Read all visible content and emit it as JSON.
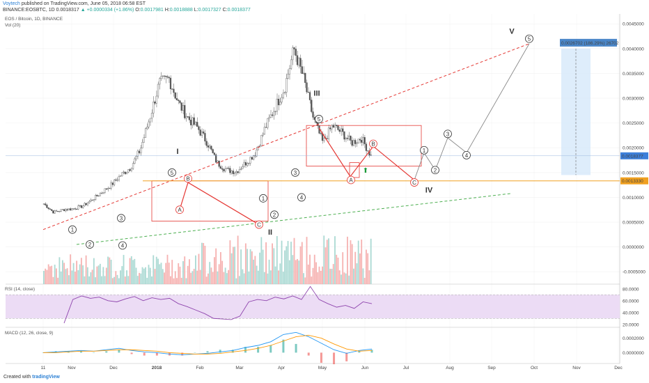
{
  "header": {
    "author": "Voytech",
    "published": "published on TradingView.com, June 05, 2018 06:58 EST",
    "symbol": "BINANCE:EOSBTC, 1D",
    "ohlc_prefix": "0.0018317",
    "change": "+0.0000334 (+1.86%)",
    "o_label": "O:",
    "o_value": "0.0017981",
    "h_label": "H:",
    "h_value": "0.0018888",
    "l_label": "L:",
    "l_value": "0.0017327",
    "c_label": "C:",
    "c_value": "0.0018377"
  },
  "legend": {
    "title": "EOS / Bitcoin, 1D, BINANCE",
    "vol": "Vol (20)",
    "rsi": "RSI (14, close)",
    "macd": "MACD (12, 26, close, 9)"
  },
  "footer": {
    "created": "Created with",
    "brand": "tradingView"
  },
  "colors": {
    "up": "#26a69a",
    "down": "#ef5350",
    "vol_up": "#9ed4cc",
    "vol_down": "#f4a6a4",
    "wave_red": "#e53935",
    "wave_grey": "#888888",
    "orange": "#f0a020",
    "green_dash": "#4caf50",
    "rsi_line": "#8e44ad",
    "rsi_band": "#ecdcf5",
    "macd_line": "#2196f3",
    "signal_line": "#ff9800",
    "projection": "#d6e8fa",
    "price_label": "#3d7fd9"
  },
  "chart_data": {
    "type": "line",
    "title": "EOS / Bitcoin, 1D, BINANCE",
    "y_ticks": [
      "0.0045000",
      "0.0040000",
      "0.0035000",
      "0.0030000",
      "0.0025000",
      "0.0020000",
      "0.0015000",
      "0.0010000",
      "0.0005000",
      "0.0000000",
      "-0.0005000"
    ],
    "ylim": [
      -0.00075,
      0.0047
    ],
    "x_ticks": [
      "11",
      "Nov",
      "Dec",
      "2018",
      "Feb",
      "Mar",
      "Apr",
      "May",
      "Jun",
      "Jul",
      "Aug",
      "Sep",
      "Oct",
      "Nov",
      "Dec"
    ],
    "current_price_label": "0.0018377",
    "support_label": "0.0013330",
    "projection_label": "0.0026702 (186.29%) 26702",
    "price_series": {
      "name": "EOSBTC",
      "points": [
        [
          0,
          0.00087
        ],
        [
          1,
          0.0007
        ],
        [
          2,
          0.00075
        ],
        [
          3,
          0.00077
        ],
        [
          4,
          0.00082
        ],
        [
          5,
          0.00095
        ],
        [
          6,
          0.0011
        ],
        [
          7,
          0.00125
        ],
        [
          8,
          0.00145
        ],
        [
          9,
          0.0016
        ],
        [
          10,
          0.00195
        ],
        [
          11,
          0.0026
        ],
        [
          12,
          0.0033
        ],
        [
          13,
          0.0034
        ],
        [
          14,
          0.0029
        ],
        [
          15,
          0.0026
        ],
        [
          16,
          0.0024
        ],
        [
          17,
          0.0021
        ],
        [
          18,
          0.0017
        ],
        [
          19,
          0.00155
        ],
        [
          20,
          0.00152
        ],
        [
          21,
          0.0017
        ],
        [
          22,
          0.0019
        ],
        [
          23,
          0.0024
        ],
        [
          24,
          0.0028
        ],
        [
          25,
          0.0032
        ],
        [
          26,
          0.004
        ],
        [
          27,
          0.0034
        ],
        [
          28,
          0.0026
        ],
        [
          29,
          0.0021
        ],
        [
          30,
          0.00245
        ],
        [
          31,
          0.0023
        ],
        [
          32,
          0.0021
        ],
        [
          33,
          0.0022
        ],
        [
          34,
          0.0018377
        ]
      ]
    },
    "rsi": {
      "y_ticks": [
        "80.0000",
        "60.0000",
        "40.0000",
        "20.0000"
      ],
      "ylim": [
        15,
        88
      ],
      "band": [
        30,
        70
      ],
      "values": [
        22,
        62,
        68,
        64,
        66,
        60,
        58,
        63,
        67,
        60,
        65,
        62,
        64,
        55,
        50,
        44,
        38,
        30,
        29,
        28,
        34,
        58,
        62,
        60,
        66,
        63,
        68,
        62,
        84,
        62,
        55,
        49,
        52,
        47,
        58,
        55
      ]
    },
    "macd": {
      "y_ticks": [
        "0.0002000",
        "0.0000000"
      ],
      "ylim": [
        -0.00015,
        0.00035
      ],
      "macd": [
        0.0,
        1e-05,
        2e-05,
        3e-05,
        2e-05,
        4e-05,
        6e-05,
        3e-05,
        1e-05,
        0.0,
        -2e-05,
        -3e-05,
        -2e-05,
        -1e-05,
        1e-05,
        3e-05,
        7e-05,
        0.0001,
        0.00015,
        0.00025,
        0.00028,
        0.00022,
        0.00013,
        4e-05,
        -1e-05,
        3e-05,
        5e-05
      ],
      "signal": [
        0.0,
        0.0,
        1e-05,
        2e-05,
        2e-05,
        3e-05,
        4e-05,
        4e-05,
        3e-05,
        2e-05,
        0.0,
        -1e-05,
        -2e-05,
        -2e-05,
        -1e-05,
        1e-05,
        3e-05,
        6e-05,
        0.0001,
        0.00016,
        0.00022,
        0.00024,
        0.0002,
        0.00012,
        5e-05,
        2e-05,
        3e-05
      ]
    },
    "waves": {
      "primary_labels": [
        "I",
        "II",
        "III",
        "IV",
        "V"
      ],
      "minor_labels": [
        "1",
        "2",
        "3",
        "4",
        "5"
      ],
      "abc_labels": [
        "A",
        "B",
        "C"
      ]
    }
  }
}
